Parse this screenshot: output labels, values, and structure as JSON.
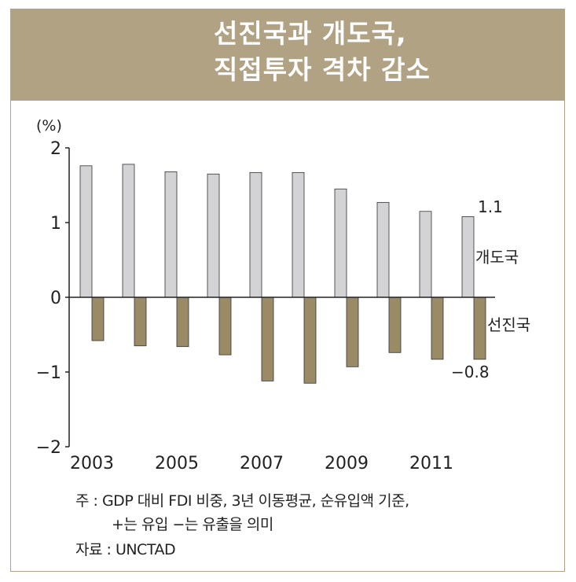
{
  "title_line1": "선진국과 개도국,",
  "title_line2": "직접투자 격차 감소",
  "chart_data": {
    "type": "bar",
    "title": "선진국과 개도국, 직접투자 격차 감소",
    "ylabel": "(%)",
    "ylim": [
      -2,
      2
    ],
    "yticks": [
      "2",
      "1",
      "0",
      "−1",
      "−2"
    ],
    "ytick_values": [
      2,
      1,
      0,
      -1,
      -2
    ],
    "categories": [
      "2003",
      "2004",
      "2005",
      "2006",
      "2007",
      "2008",
      "2009",
      "2010",
      "2011",
      "2012"
    ],
    "xtick_labels": [
      "2003",
      "2005",
      "2007",
      "2009",
      "2011"
    ],
    "series": [
      {
        "name": "개도국",
        "color": "#d3d3d5",
        "values": [
          1.76,
          1.78,
          1.68,
          1.65,
          1.67,
          1.67,
          1.45,
          1.27,
          1.15,
          1.08
        ]
      },
      {
        "name": "선진국",
        "color": "#9a8a66",
        "values": [
          -0.58,
          -0.65,
          -0.66,
          -0.77,
          -1.12,
          -1.15,
          -0.93,
          -0.74,
          -0.83,
          -0.83
        ]
      }
    ],
    "annotations": {
      "developing_last": "1.1",
      "advanced_last": "−0.8"
    }
  },
  "notes": {
    "note_line1": "주 : GDP 대비 FDI 비중, 3년 이동평균, 순유입액 기준,",
    "note_line2": "+는 유입 −는 유출을 의미",
    "source": "자료 : UNCTAD"
  }
}
